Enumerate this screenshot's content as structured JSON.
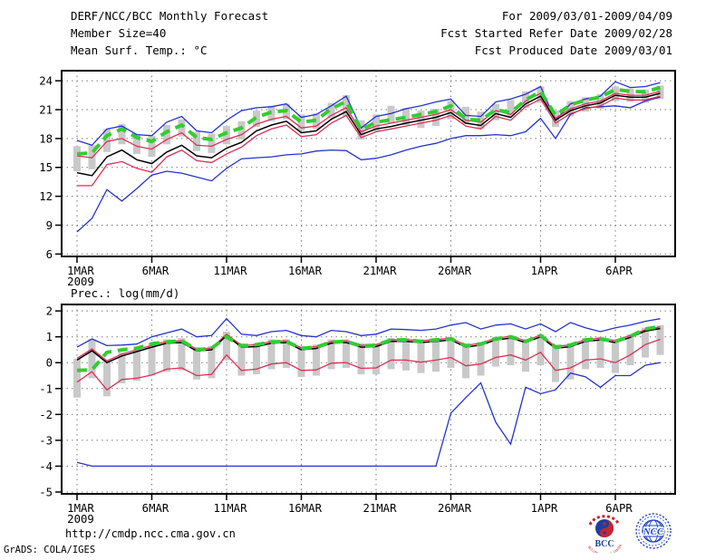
{
  "header": {
    "left": [
      "DERF/NCC/BCC Monthly Forecast",
      "Member Size=40"
    ],
    "right": [
      "For 2009/03/01-2009/04/09",
      "Fcst Started Refer Date 2009/02/28",
      "Fcst Produced Date 2009/03/01"
    ]
  },
  "footer": {
    "url": "http://cmdp.ncc.cma.gov.cn",
    "credit": "GrADS: COLA/IGES"
  },
  "logos": {
    "bcc": {
      "label": "BCC",
      "arc_text": "BEIJING CLIMATE CENTER",
      "red": "#c4272f",
      "blue": "#1d3f9e"
    },
    "ncc": {
      "label": "NCC",
      "color": "#2443c8"
    }
  },
  "colors": {
    "max_min": "#2433cf",
    "quartile": "#dd2f55",
    "median": "#000000",
    "mean": "#32cd32",
    "bar": "#c9c9c9",
    "grid": "#787878",
    "axis": "#000000"
  },
  "chart_data": [
    {
      "type": "line",
      "name": "surface-temperature",
      "title": "Mean Surf. Temp.: °C",
      "x_note": "days from 2009-03-01, one point per day",
      "xlim_days": [
        -1.03,
        40.0
      ],
      "ylim": [
        5.75,
        25.05
      ],
      "yticks": [
        6,
        9,
        12,
        15,
        18,
        21,
        24
      ],
      "xticks": [
        {
          "day": 0,
          "label": "1MAR",
          "sub": "2009"
        },
        {
          "day": 5,
          "label": "6MAR"
        },
        {
          "day": 10,
          "label": "11MAR"
        },
        {
          "day": 15,
          "label": "16MAR"
        },
        {
          "day": 20,
          "label": "21MAR"
        },
        {
          "day": 25,
          "label": "26MAR"
        },
        {
          "day": 31,
          "label": "1APR"
        },
        {
          "day": 36,
          "label": "6APR"
        }
      ],
      "series": [
        {
          "name": "ensemble-max",
          "color_key": "max_min",
          "width": 1.3,
          "values": [
            17.8,
            17.3,
            19.0,
            19.3,
            18.4,
            18.3,
            19.7,
            20.3,
            18.8,
            18.6,
            19.9,
            20.9,
            21.2,
            21.3,
            21.6,
            20.2,
            20.5,
            21.4,
            22.4,
            19.1,
            20.3,
            20.6,
            21.1,
            21.4,
            21.8,
            22.1,
            20.4,
            20.3,
            21.8,
            22.1,
            22.6,
            23.4,
            19.9,
            21.6,
            22.1,
            22.4,
            23.9,
            23.3,
            23.4,
            23.8
          ]
        },
        {
          "name": "upper-quartile",
          "color_key": "quartile",
          "width": 1.3,
          "values": [
            16.2,
            16.0,
            17.7,
            18.0,
            17.2,
            16.9,
            17.9,
            18.6,
            17.3,
            17.2,
            17.9,
            18.4,
            19.5,
            20.0,
            20.3,
            19.1,
            19.3,
            20.4,
            21.2,
            18.7,
            19.3,
            19.6,
            19.9,
            20.2,
            20.5,
            21.0,
            19.9,
            19.7,
            20.9,
            20.5,
            21.9,
            22.7,
            20.1,
            21.1,
            21.6,
            21.9,
            22.7,
            22.5,
            22.5,
            22.9
          ]
        },
        {
          "name": "median",
          "color_key": "median",
          "width": 1.5,
          "values": [
            14.45,
            14.15,
            16.1,
            16.8,
            15.8,
            15.4,
            16.6,
            17.3,
            16.2,
            16.0,
            17.0,
            17.6,
            18.8,
            19.4,
            19.8,
            18.6,
            18.8,
            20.0,
            20.8,
            18.4,
            19.0,
            19.25,
            19.6,
            19.9,
            20.2,
            20.7,
            19.6,
            19.35,
            20.6,
            20.2,
            21.6,
            22.4,
            19.9,
            20.9,
            21.4,
            21.7,
            22.5,
            22.3,
            22.3,
            22.7
          ]
        },
        {
          "name": "lower-quartile",
          "color_key": "quartile",
          "width": 1.3,
          "values": [
            13.1,
            13.1,
            15.3,
            15.6,
            14.9,
            14.5,
            16.1,
            16.8,
            15.7,
            15.5,
            16.4,
            17.1,
            18.3,
            19.0,
            19.4,
            18.2,
            18.4,
            19.6,
            20.4,
            18.1,
            18.7,
            19.0,
            19.3,
            19.6,
            19.9,
            20.4,
            19.3,
            19.0,
            20.3,
            19.9,
            21.3,
            22.1,
            19.6,
            20.6,
            21.1,
            21.4,
            22.2,
            22.0,
            22.0,
            22.4
          ]
        },
        {
          "name": "ensemble-min",
          "color_key": "max_min",
          "width": 1.3,
          "values": [
            8.3,
            9.7,
            12.7,
            11.5,
            12.8,
            14.2,
            14.6,
            14.4,
            14.0,
            13.6,
            14.9,
            15.9,
            16.0,
            16.1,
            16.3,
            16.4,
            16.7,
            16.8,
            16.75,
            15.8,
            15.95,
            16.3,
            16.8,
            17.2,
            17.5,
            18.0,
            18.3,
            18.3,
            18.4,
            18.3,
            18.7,
            20.1,
            18.0,
            20.5,
            21.2,
            21.3,
            21.4,
            21.2,
            21.9,
            22.3
          ]
        },
        {
          "name": "ensemble-mean",
          "color_key": "mean",
          "width": 4,
          "dash": "11 7",
          "values": [
            16.4,
            16.5,
            18.3,
            19.0,
            18.1,
            17.7,
            18.7,
            19.4,
            18.1,
            17.9,
            18.6,
            19.1,
            20.2,
            20.75,
            20.9,
            19.7,
            19.9,
            21.1,
            21.85,
            18.9,
            19.7,
            19.95,
            20.2,
            20.5,
            20.8,
            21.4,
            20.0,
            19.9,
            21.0,
            20.7,
            22.0,
            22.9,
            20.4,
            21.5,
            22.0,
            22.3,
            23.1,
            22.9,
            22.85,
            23.3
          ]
        }
      ],
      "bars": {
        "low": [
          14.6,
          14.8,
          16.6,
          17.4,
          16.4,
          16.1,
          17.4,
          18.2,
          16.7,
          16.5,
          17.4,
          17.9,
          19.2,
          19.8,
          20.0,
          18.8,
          19.0,
          20.1,
          20.3,
          17.9,
          18.8,
          19.6,
          19.4,
          19.1,
          19.3,
          20.0,
          19.5,
          19.0,
          19.9,
          20.3,
          21.2,
          21.7,
          19.2,
          20.3,
          20.8,
          21.1,
          21.9,
          21.8,
          21.7,
          22.1
        ],
        "high": [
          17.2,
          17.3,
          19.0,
          19.5,
          18.5,
          18.3,
          19.4,
          20.0,
          18.7,
          18.5,
          19.3,
          19.8,
          20.9,
          21.4,
          21.6,
          20.5,
          20.6,
          21.7,
          22.5,
          19.9,
          20.5,
          21.4,
          21.2,
          20.9,
          21.1,
          21.9,
          21.3,
          20.8,
          21.6,
          22.0,
          22.9,
          23.4,
          20.9,
          21.9,
          22.3,
          22.6,
          23.4,
          23.2,
          23.1,
          23.5
        ]
      }
    },
    {
      "type": "line",
      "name": "precipitation",
      "title": "Prec.: log(mm/d)",
      "x_note": "days from 2009-03-01, one point per day",
      "xlim_days": [
        -1.03,
        40.0
      ],
      "ylim": [
        -5.07,
        2.25
      ],
      "yticks": [
        2,
        1,
        0,
        -1,
        -2,
        -3,
        -4,
        -5
      ],
      "xticks": [
        {
          "day": 0,
          "label": "1MAR",
          "sub": "2009"
        },
        {
          "day": 5,
          "label": "6MAR"
        },
        {
          "day": 10,
          "label": "11MAR"
        },
        {
          "day": 15,
          "label": "16MAR"
        },
        {
          "day": 20,
          "label": "21MAR"
        },
        {
          "day": 25,
          "label": "26MAR"
        },
        {
          "day": 31,
          "label": "1APR"
        },
        {
          "day": 36,
          "label": "6APR"
        }
      ],
      "series": [
        {
          "name": "ensemble-max",
          "color_key": "max_min",
          "width": 1.3,
          "values": [
            0.6,
            0.92,
            0.66,
            0.68,
            0.72,
            1.0,
            1.15,
            1.3,
            1.0,
            1.05,
            1.7,
            1.1,
            1.05,
            1.2,
            1.25,
            1.05,
            1.0,
            1.25,
            1.2,
            1.05,
            1.1,
            1.3,
            1.28,
            1.25,
            1.3,
            1.45,
            1.55,
            1.3,
            1.45,
            1.5,
            1.3,
            1.5,
            1.2,
            1.55,
            1.35,
            1.2,
            1.35,
            1.45,
            1.6,
            1.7
          ]
        },
        {
          "name": "upper-quartile",
          "color_key": "quartile",
          "width": 1.3,
          "values": [
            0.17,
            0.53,
            0.07,
            0.33,
            0.5,
            0.67,
            0.82,
            0.85,
            0.52,
            0.57,
            1.1,
            0.67,
            0.69,
            0.82,
            0.85,
            0.57,
            0.62,
            0.82,
            0.85,
            0.67,
            0.69,
            0.89,
            0.89,
            0.85,
            0.89,
            0.95,
            0.67,
            0.75,
            0.95,
            1.02,
            0.85,
            1.07,
            0.62,
            0.69,
            0.89,
            0.95,
            0.85,
            1.05,
            1.28,
            1.38
          ]
        },
        {
          "name": "median",
          "color_key": "median",
          "width": 1.5,
          "values": [
            0.1,
            0.46,
            0.0,
            0.26,
            0.43,
            0.6,
            0.75,
            0.78,
            0.45,
            0.5,
            1.05,
            0.6,
            0.62,
            0.75,
            0.78,
            0.5,
            0.55,
            0.75,
            0.78,
            0.6,
            0.62,
            0.82,
            0.82,
            0.78,
            0.82,
            0.88,
            0.6,
            0.68,
            0.88,
            0.95,
            0.78,
            1.0,
            0.55,
            0.62,
            0.82,
            0.88,
            0.78,
            0.98,
            1.22,
            1.32
          ]
        },
        {
          "name": "lower-quartile",
          "color_key": "quartile",
          "width": 1.3,
          "values": [
            -0.75,
            -0.35,
            -1.05,
            -0.65,
            -0.6,
            -0.48,
            -0.25,
            -0.2,
            -0.5,
            -0.45,
            0.3,
            -0.3,
            -0.25,
            -0.05,
            0.0,
            -0.3,
            -0.28,
            -0.02,
            0.0,
            -0.22,
            -0.2,
            0.1,
            0.1,
            0.02,
            0.1,
            0.2,
            -0.12,
            -0.05,
            0.2,
            0.3,
            0.1,
            0.4,
            -0.3,
            -0.2,
            0.1,
            0.15,
            0.0,
            0.3,
            0.7,
            0.9
          ]
        },
        {
          "name": "ensemble-min",
          "color_key": "max_min",
          "width": 1.3,
          "values": [
            -3.85,
            -4,
            -4,
            -4,
            -4,
            -4,
            -4,
            -4,
            -4,
            -4,
            -4,
            -4,
            -4,
            -4,
            -4,
            -4,
            -4,
            -4,
            -4,
            -4,
            -4,
            -4,
            -4,
            -4,
            -4,
            -1.95,
            -1.35,
            -0.78,
            -2.3,
            -3.15,
            -0.95,
            -1.2,
            -1.05,
            -0.4,
            -0.55,
            -0.95,
            -0.5,
            -0.5,
            -0.1,
            0.0
          ]
        },
        {
          "name": "ensemble-mean",
          "color_key": "mean",
          "width": 4,
          "dash": "11 7",
          "values": [
            -0.3,
            -0.28,
            0.4,
            0.5,
            0.56,
            0.73,
            0.8,
            0.85,
            0.5,
            0.55,
            1.0,
            0.65,
            0.7,
            0.8,
            0.82,
            0.55,
            0.6,
            0.8,
            0.82,
            0.65,
            0.67,
            0.88,
            0.88,
            0.82,
            0.88,
            0.92,
            0.65,
            0.72,
            0.92,
            1.0,
            0.82,
            1.05,
            0.6,
            0.68,
            0.88,
            0.92,
            0.82,
            1.02,
            1.3,
            1.4
          ]
        }
      ],
      "bars": {
        "low": [
          -1.35,
          -0.6,
          -1.3,
          -0.8,
          -0.7,
          -0.5,
          -0.35,
          -0.3,
          -0.65,
          -0.6,
          0.1,
          -0.5,
          -0.45,
          -0.25,
          -0.2,
          -0.55,
          -0.5,
          -0.25,
          -0.2,
          -0.45,
          -0.45,
          -0.25,
          -0.3,
          -0.4,
          -0.35,
          -0.2,
          -0.6,
          -0.5,
          -0.15,
          -0.1,
          -0.35,
          -0.1,
          -0.75,
          -0.65,
          -0.25,
          -0.2,
          -0.4,
          -0.1,
          0.2,
          0.3
        ],
        "high": [
          0.15,
          0.9,
          0.1,
          0.4,
          0.55,
          0.75,
          0.9,
          0.95,
          0.6,
          0.65,
          1.2,
          0.75,
          0.75,
          0.9,
          0.9,
          0.65,
          0.7,
          0.9,
          0.9,
          0.75,
          0.75,
          0.95,
          0.95,
          0.9,
          0.95,
          1.0,
          0.75,
          0.8,
          1.0,
          1.05,
          0.9,
          1.1,
          0.7,
          0.75,
          0.95,
          1.0,
          0.9,
          1.1,
          1.35,
          1.45
        ]
      }
    }
  ]
}
